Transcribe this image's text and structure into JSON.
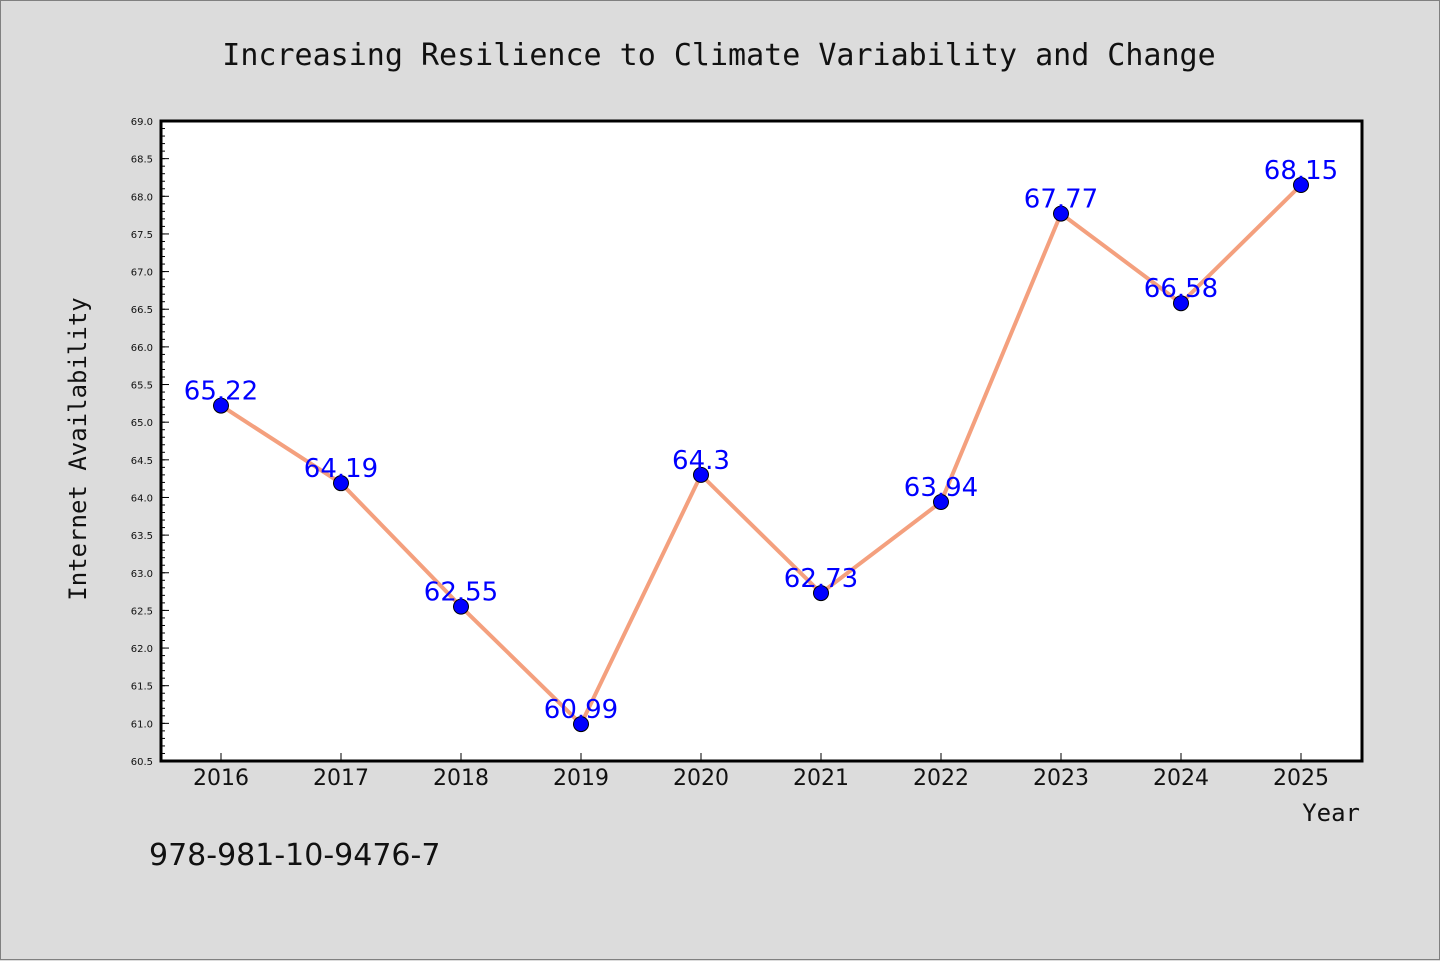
{
  "chart_data": {
    "type": "line",
    "title": "Increasing Resilience to Climate Variability and Change",
    "xlabel": "Year",
    "ylabel": "Internet Availability",
    "categories": [
      "2016",
      "2017",
      "2018",
      "2019",
      "2020",
      "2021",
      "2022",
      "2023",
      "2024",
      "2025"
    ],
    "series": [
      {
        "values": [
          65.22,
          64.19,
          62.55,
          60.99,
          64.3,
          62.73,
          63.94,
          67.77,
          66.58,
          68.15
        ],
        "data_labels": [
          "65.22",
          "64.19",
          "62.55",
          "60.99",
          "64.3",
          "62.73",
          "63.94",
          "67.77",
          "66.58",
          "68.15"
        ],
        "line_color": "#f4a07e",
        "marker_color": "#0000ff"
      }
    ],
    "ylim": [
      60.5,
      69.0
    ],
    "yticks": [
      "60.5",
      "61.0",
      "61.5",
      "62.0",
      "62.5",
      "63.0",
      "63.5",
      "64.0",
      "64.5",
      "65.0",
      "65.5",
      "66.0",
      "66.5",
      "67.0",
      "67.5",
      "68.0",
      "68.5",
      "69.0"
    ],
    "grid": false,
    "label_color": "#0000ff"
  },
  "footer_text": "978-981-10-9476-7"
}
